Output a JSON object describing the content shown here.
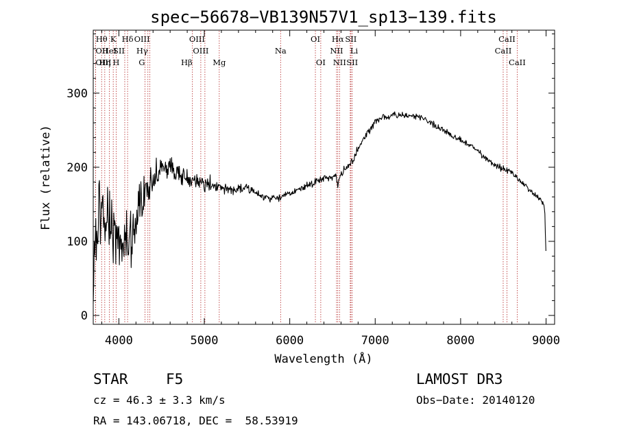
{
  "chart_data": {
    "type": "line",
    "title": "spec−56678−VB139N57V1_sp13−139.fits",
    "xlabel": "Wavelength (Å)",
    "ylabel": "Flux (relative)",
    "xlim": [
      3700,
      9100
    ],
    "ylim": [
      -12,
      385
    ],
    "xticks": [
      4000,
      5000,
      6000,
      7000,
      8000,
      9000
    ],
    "yticks": [
      0,
      100,
      200,
      300
    ],
    "series": [
      {
        "name": "spectrum",
        "continuum_x": [
          3700,
          3720,
          3760,
          3800,
          3850,
          3900,
          3950,
          4000,
          4050,
          4100,
          4150,
          4200,
          4250,
          4300,
          4350,
          4400,
          4450,
          4500,
          4600,
          4700,
          4800,
          4900,
          5000,
          5100,
          5200,
          5300,
          5400,
          5500,
          5600,
          5700,
          5800,
          5900,
          6000,
          6100,
          6200,
          6300,
          6400,
          6500,
          6540,
          6563,
          6590,
          6650,
          6700,
          6750,
          6800,
          6900,
          7000,
          7100,
          7200,
          7300,
          7400,
          7500,
          7600,
          7700,
          7800,
          7900,
          8000,
          8100,
          8200,
          8300,
          8400,
          8500,
          8600,
          8700,
          8800,
          8900,
          8960,
          8985,
          9000
        ],
        "continuum_y": [
          20,
          120,
          140,
          140,
          135,
          125,
          115,
          105,
          100,
          95,
          110,
          130,
          150,
          165,
          175,
          185,
          195,
          200,
          198,
          192,
          185,
          180,
          178,
          176,
          172,
          170,
          170,
          172,
          165,
          160,
          158,
          160,
          165,
          170,
          175,
          180,
          185,
          188,
          190,
          175,
          192,
          198,
          205,
          212,
          225,
          245,
          262,
          268,
          270,
          270,
          268,
          268,
          264,
          257,
          250,
          243,
          237,
          230,
          222,
          212,
          203,
          198,
          193,
          182,
          170,
          160,
          153,
          140,
          80
        ],
        "noise_x": [
          3700,
          3800,
          3900,
          4000,
          4100,
          4200,
          4300,
          4400,
          4500,
          4700,
          5000,
          5300,
          5600,
          6000,
          6500,
          7000,
          8000,
          9000
        ],
        "noise_amp": [
          60,
          45,
          50,
          45,
          40,
          35,
          28,
          18,
          14,
          12,
          10,
          7,
          6,
          5,
          5,
          5,
          4,
          4
        ],
        "step": 6,
        "seed": 137
      }
    ],
    "lines": [
      {
        "label": "Hθ",
        "x": 3798,
        "row": 1,
        "anchor": "middle"
      },
      {
        "label": "OII",
        "x": 3727,
        "row": 2,
        "anchor": "start"
      },
      {
        "label": "OIII",
        "x": 3727,
        "row": 3,
        "anchor": "start"
      },
      {
        "label": "K",
        "x": 3934,
        "row": 1,
        "anchor": "middle"
      },
      {
        "label": "Hη",
        "x": 3835,
        "row": 3,
        "anchor": "middle"
      },
      {
        "label": "HeI",
        "x": 3889,
        "row": 2,
        "anchor": "middle"
      },
      {
        "label": "SII",
        "x": 4069,
        "row": 2,
        "anchor": "end"
      },
      {
        "label": "H",
        "x": 3968,
        "row": 3,
        "anchor": "middle"
      },
      {
        "label": "Hδ",
        "x": 4102,
        "row": 1,
        "anchor": "middle"
      },
      {
        "label": "OIII",
        "x": 4363,
        "row": 1,
        "anchor": "end"
      },
      {
        "label": "Hγ",
        "x": 4340,
        "row": 2,
        "anchor": "end"
      },
      {
        "label": "G",
        "x": 4305,
        "row": 3,
        "anchor": "end"
      },
      {
        "label": "Hβ",
        "x": 4861,
        "row": 3,
        "anchor": "end"
      },
      {
        "label": "OIII",
        "x": 4959,
        "row": 2,
        "anchor": "middle"
      },
      {
        "label": "OIII",
        "x": 5007,
        "row": 1,
        "anchor": "end"
      },
      {
        "label": "Mg",
        "x": 5175,
        "row": 3,
        "anchor": "middle"
      },
      {
        "label": "Na",
        "x": 5893,
        "row": 2,
        "anchor": "middle"
      },
      {
        "label": "OI",
        "x": 6300,
        "row": 1,
        "anchor": "middle"
      },
      {
        "label": "OI",
        "x": 6363,
        "row": 3,
        "anchor": "middle"
      },
      {
        "label": "NII",
        "x": 6548,
        "row": 2,
        "anchor": "middle"
      },
      {
        "label": "Hα",
        "x": 6563,
        "row": 1,
        "anchor": "middle"
      },
      {
        "label": "NII",
        "x": 6583,
        "row": 3,
        "anchor": "middle"
      },
      {
        "label": "SII",
        "x": 6716,
        "row": 1,
        "anchor": "middle"
      },
      {
        "label": "Li",
        "x": 6708,
        "row": 2,
        "anchor": "start"
      },
      {
        "label": "SII",
        "x": 6731,
        "row": 3,
        "anchor": "middle"
      },
      {
        "label": "CaII",
        "x": 8498,
        "row": 2,
        "anchor": "middle"
      },
      {
        "label": "CaII",
        "x": 8542,
        "row": 1,
        "anchor": "middle"
      },
      {
        "label": "CaII",
        "x": 8662,
        "row": 3,
        "anchor": "middle"
      }
    ]
  },
  "info": {
    "class": "STAR",
    "subclass": "F5",
    "survey": "LAMOST DR3",
    "redshift": "cz = 46.3 ± 3.3 km/s",
    "obsdate": "Obs−Date: 20140120",
    "coords": "RA = 143.06718, DEC =  58.53919"
  },
  "colors": {
    "spectrum": "#000000",
    "line_marker": "#b22222",
    "axis": "#000000"
  }
}
